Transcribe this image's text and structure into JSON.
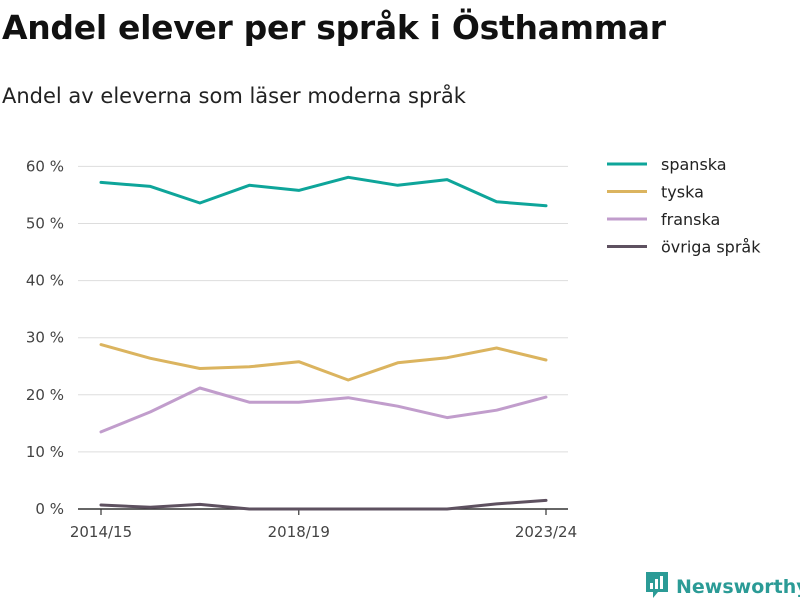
{
  "chart_data": {
    "type": "line",
    "title": "Andel elever per språk i Östhammar",
    "subtitle": "Andel av eleverna som läser moderna språk",
    "x": [
      "2014/15",
      "2015/16",
      "2016/17",
      "2017/18",
      "2018/19",
      "2019/20",
      "2020/21",
      "2021/22",
      "2022/23",
      "2023/24"
    ],
    "x_tick_labels": [
      "2014/15",
      "2018/19",
      "2023/24"
    ],
    "y_ticks": [
      0,
      10,
      20,
      30,
      40,
      50,
      60
    ],
    "y_tick_labels": [
      "0 %",
      "10 %",
      "20 %",
      "30 %",
      "40 %",
      "50 %",
      "60 %"
    ],
    "ylim": [
      0,
      62
    ],
    "grid": "horizontal",
    "legend_position": "top-right",
    "series": [
      {
        "name": "spanska",
        "color": "#0ea59a",
        "values": [
          57.2,
          56.5,
          53.6,
          56.7,
          55.8,
          58.1,
          56.7,
          57.7,
          53.8,
          53.1
        ]
      },
      {
        "name": "tyska",
        "color": "#dbb45f",
        "values": [
          28.8,
          26.4,
          24.6,
          24.9,
          25.8,
          22.6,
          25.6,
          26.5,
          28.2,
          26.1
        ]
      },
      {
        "name": "franska",
        "color": "#c19dcc",
        "values": [
          13.5,
          17.0,
          21.2,
          18.7,
          18.7,
          19.5,
          18.0,
          16.0,
          17.3,
          19.6
        ]
      },
      {
        "name": "övriga språk",
        "color": "#5e5160",
        "values": [
          0.7,
          0.3,
          0.8,
          0.0,
          0.0,
          0.0,
          0.0,
          0.0,
          0.9,
          1.5
        ]
      }
    ]
  },
  "branding": {
    "name": "Newsworthy",
    "icon": "newsworthy-logo-icon",
    "color": "#2b9b96"
  }
}
